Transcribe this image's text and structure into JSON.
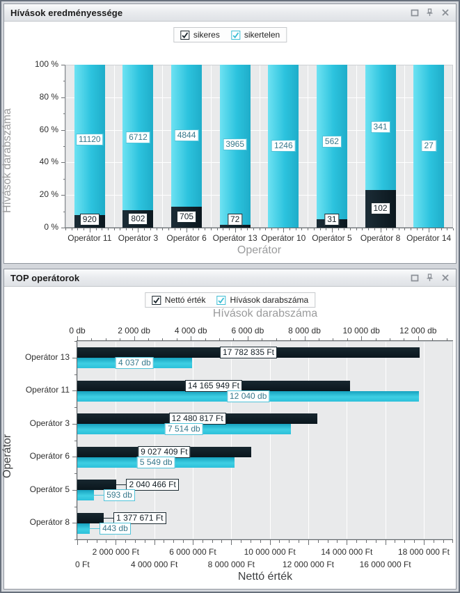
{
  "panels": {
    "top": {
      "title": "Hívások eredményessége",
      "legend": [
        {
          "label": "sikeres",
          "checked": true,
          "color": "#1a252c"
        },
        {
          "label": "sikertelen",
          "checked": true,
          "color": "#3bbdd4"
        }
      ]
    },
    "bottom": {
      "title": "TOP operátorok",
      "legend": [
        {
          "label": "Nettó érték",
          "checked": true,
          "color": "#1a252c"
        },
        {
          "label": "Hívások darabszáma",
          "checked": true,
          "color": "#3bbdd4"
        }
      ]
    }
  },
  "colors": {
    "cyan": "#2cc3de",
    "dark": "#0d1b23",
    "plot_bg": "#e9eaeb",
    "grid": "#ffffff"
  },
  "chart_data": [
    {
      "type": "bar",
      "subtype": "stacked-100-percent-columns",
      "title": "",
      "categories": [
        "Operátor 11",
        "Operátor 3",
        "Operátor 6",
        "Operátor 13",
        "Operátor 10",
        "Operátor 5",
        "Operátor 8",
        "Operátor 14"
      ],
      "series": [
        {
          "name": "sikeres",
          "color": "#0d1b23",
          "values": [
            920,
            802,
            705,
            72,
            0,
            31,
            102,
            0
          ],
          "labels": [
            "920",
            "802",
            "705",
            "72",
            "",
            "31",
            "102",
            ""
          ]
        },
        {
          "name": "sikertelen",
          "color": "#2cc3de",
          "values": [
            11120,
            6712,
            4844,
            3965,
            1246,
            562,
            341,
            27
          ],
          "labels": [
            "11120",
            "6712",
            "4844",
            "3965",
            "1246",
            "562",
            "341",
            "27"
          ]
        }
      ],
      "xlabel": "Operátor",
      "ylabel": "Hívások darabszáma",
      "y_ticks": [
        "0 %",
        "20 %",
        "40 %",
        "60 %",
        "80 %",
        "100 %"
      ],
      "ylim": [
        0,
        100
      ],
      "grid": true,
      "legend_position": "top"
    },
    {
      "type": "bar",
      "subtype": "grouped-horizontal-dual-axis",
      "title": "",
      "categories": [
        "Operátor 13",
        "Operátor 11",
        "Operátor 3",
        "Operátor 6",
        "Operátor 5",
        "Operátor 8"
      ],
      "series": [
        {
          "name": "Nettó érték",
          "axis": "bottom",
          "unit": "Ft",
          "color": "#0d1b23",
          "values": [
            17782835,
            14165949,
            12480817,
            9027409,
            2040466,
            1377671
          ],
          "labels": [
            "17 782 835 Ft",
            "14 165 949 Ft",
            "12 480 817 Ft",
            "9 027 409 Ft",
            "2 040 466 Ft",
            "1 377 671 Ft"
          ]
        },
        {
          "name": "Hívások darabszáma",
          "axis": "top",
          "unit": "db",
          "color": "#2cc3de",
          "values": [
            4037,
            12040,
            7514,
            5549,
            593,
            443
          ],
          "labels": [
            "4 037 db",
            "12 040 db",
            "7 514 db",
            "5 549 db",
            "593 db",
            "443 db"
          ]
        }
      ],
      "ylabel": "Operátor",
      "top_axis": {
        "title": "Hívások darabszáma",
        "tick_labels": [
          "0 db",
          "2 000 db",
          "4 000 db",
          "6 000 db",
          "8 000 db",
          "10 000 db",
          "12 000 db"
        ],
        "tick_values": [
          0,
          2000,
          4000,
          6000,
          8000,
          10000,
          12000
        ],
        "minor_step": 500,
        "max": 13230
      },
      "bottom_axis": {
        "title": "Nettó érték",
        "tick_labels_row1": [
          "2 000 000 Ft",
          "6 000 000 Ft",
          "10 000 000 Ft",
          "14 000 000 Ft",
          "18 000 000 Ft"
        ],
        "tick_values_row1": [
          2000000,
          6000000,
          10000000,
          14000000,
          18000000
        ],
        "tick_labels_row2": [
          "0 Ft",
          "4 000 000 Ft",
          "8 000 000 Ft",
          "12 000 000 Ft",
          "16 000 000 Ft"
        ],
        "tick_values_row2": [
          0,
          4000000,
          8000000,
          12000000,
          16000000
        ],
        "tick_values": [
          0,
          2000000,
          4000000,
          6000000,
          8000000,
          10000000,
          12000000,
          14000000,
          16000000,
          18000000
        ],
        "minor_step": 500000,
        "max": 19520000
      },
      "grid": true,
      "legend_position": "top"
    }
  ]
}
